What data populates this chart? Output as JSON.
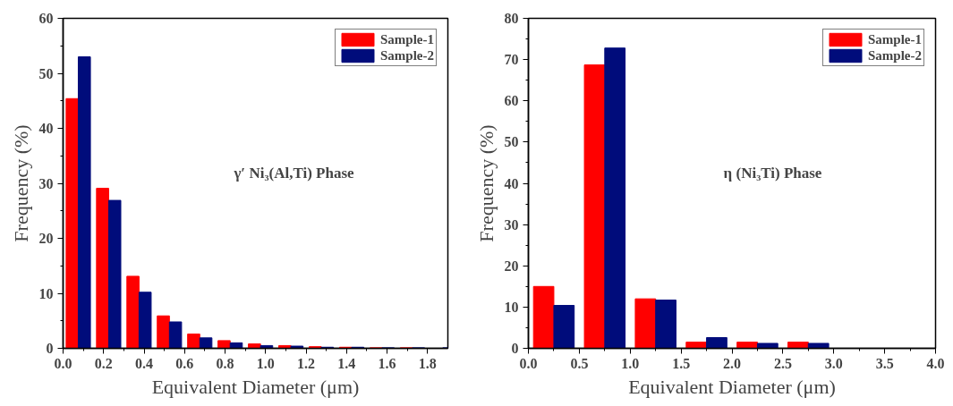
{
  "chart_data": [
    {
      "type": "bar",
      "xlabel": "Equivalent Diameter (μm)",
      "ylabel": "Frequency (%)",
      "annotations": [
        "γ′ Ni₃(Al,Ti) Phase"
      ],
      "x": [
        0.075,
        0.225,
        0.375,
        0.525,
        0.675,
        0.825,
        0.975,
        1.125,
        1.275,
        1.425,
        1.575,
        1.725,
        1.875
      ],
      "series": [
        {
          "name": "Sample-1",
          "color": "#ff0000",
          "values": [
            45.4,
            29.1,
            13.1,
            5.9,
            2.6,
            1.4,
            0.8,
            0.5,
            0.3,
            0.2,
            0.1,
            0.1,
            null
          ]
        },
        {
          "name": "Sample-2",
          "color": "#000c7b",
          "values": [
            53.0,
            26.9,
            10.2,
            4.8,
            1.9,
            1.0,
            0.5,
            0.4,
            0.2,
            0.2,
            0.1,
            0.1,
            0.1
          ]
        }
      ],
      "xlim": [
        0,
        1.9
      ],
      "xticks": [
        {
          "value": 0,
          "label": "0.0"
        },
        0.2,
        0.4,
        0.6,
        0.8,
        {
          "value": 1,
          "label": "1.0"
        },
        1.2,
        1.4,
        1.6,
        1.8
      ],
      "ylim": [
        0,
        60
      ],
      "yticks": [
        0,
        10,
        20,
        30,
        40,
        50,
        60
      ],
      "grid": false,
      "legend": "top right"
    },
    {
      "type": "bar",
      "xlabel": "Equivalent Diameter (μm)",
      "ylabel": "Frequency (%)",
      "annotations": [
        "η (Ni₃Ti) Phase"
      ],
      "x": [
        0.25,
        0.75,
        1.25,
        1.75,
        2.25,
        2.75
      ],
      "series": [
        {
          "name": "Sample-1",
          "color": "#ff0000",
          "values": [
            15.0,
            68.7,
            12.0,
            1.5,
            1.5,
            1.5
          ]
        },
        {
          "name": "Sample-2",
          "color": "#000c7b",
          "values": [
            10.4,
            72.8,
            11.7,
            2.6,
            1.2,
            1.2
          ]
        }
      ],
      "xlim": [
        0,
        4
      ],
      "xticks": [
        {
          "value": 0,
          "label": "0.0"
        },
        0.5,
        {
          "value": 1,
          "label": "1.0"
        },
        1.5,
        {
          "value": 2,
          "label": "2.0"
        },
        2.5,
        {
          "value": 3,
          "label": "3.0"
        },
        3.5,
        {
          "value": 4,
          "label": "4.0"
        }
      ],
      "ylim": [
        0,
        80
      ],
      "yticks": [
        0,
        10,
        20,
        30,
        40,
        50,
        60,
        70,
        80
      ],
      "grid": false,
      "legend": "top right"
    }
  ]
}
